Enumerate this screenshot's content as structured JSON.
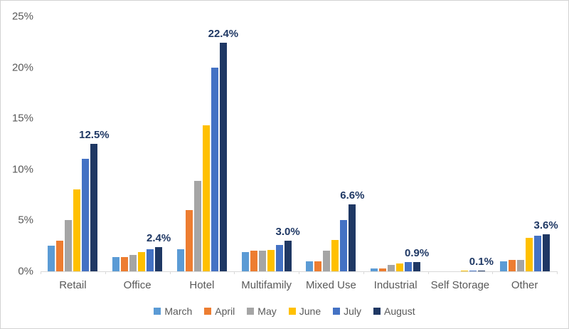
{
  "chart_data": {
    "type": "bar",
    "title": "",
    "xlabel": "",
    "ylabel": "",
    "ylim": [
      0,
      25
    ],
    "yticks": [
      "0%",
      "5%",
      "10%",
      "15%",
      "20%",
      "25%"
    ],
    "grid": false,
    "legend_position": "bottom",
    "categories": [
      "Retail",
      "Office",
      "Hotel",
      "Multifamily",
      "Mixed Use",
      "Industrial",
      "Self Storage",
      "Other"
    ],
    "series": [
      {
        "name": "March",
        "color": "#5B9BD5",
        "values": [
          2.5,
          1.4,
          2.2,
          1.9,
          1.0,
          0.3,
          0.0,
          1.0
        ]
      },
      {
        "name": "April",
        "color": "#ED7D31",
        "values": [
          3.0,
          1.4,
          6.0,
          2.0,
          1.0,
          0.3,
          0.0,
          1.1
        ]
      },
      {
        "name": "May",
        "color": "#A5A5A5",
        "values": [
          5.0,
          1.6,
          8.9,
          2.0,
          2.0,
          0.6,
          0.0,
          1.1
        ]
      },
      {
        "name": "June",
        "color": "#FFC000",
        "values": [
          8.0,
          1.9,
          14.3,
          2.1,
          3.1,
          0.8,
          0.1,
          3.3
        ]
      },
      {
        "name": "July",
        "color": "#4472C4",
        "values": [
          11.0,
          2.2,
          20.0,
          2.6,
          5.0,
          0.9,
          0.1,
          3.5
        ]
      },
      {
        "name": "August",
        "color": "#1F3864",
        "values": [
          12.5,
          2.4,
          22.4,
          3.0,
          6.6,
          0.9,
          0.1,
          3.6
        ],
        "data_labels": [
          "12.5%",
          "2.4%",
          "22.4%",
          "3.0%",
          "6.6%",
          "0.9%",
          "0.1%",
          "3.6%"
        ]
      }
    ],
    "data_label_color": "#1F3864",
    "axis_text_color": "#595959",
    "axis_line_color": "#D9D9D9",
    "background_color": "#FFFFFF"
  }
}
